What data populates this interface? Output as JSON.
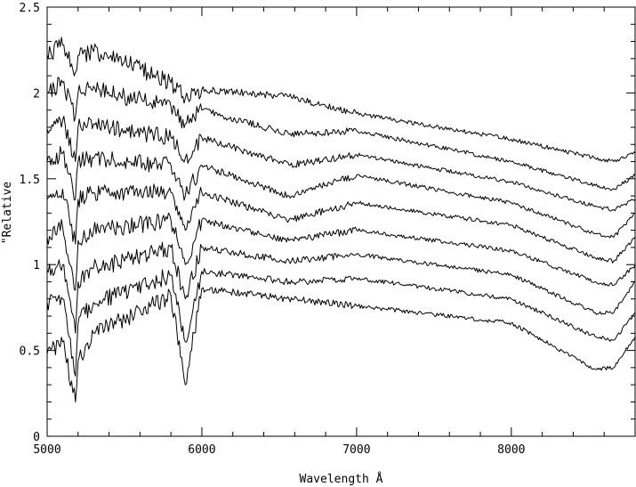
{
  "chart_data": {
    "type": "line",
    "title": "",
    "xlabel": "Wavelength Å",
    "ylabel": "\"Relative",
    "xlim": [
      5000,
      8800
    ],
    "ylim": [
      0,
      2.5
    ],
    "x_ticks": [
      5000,
      6000,
      7000,
      8000
    ],
    "x_tick_labels": [
      "5000",
      "6000",
      "7000",
      "8000"
    ],
    "y_ticks": [
      0,
      0.5,
      1,
      1.5,
      2,
      2.5
    ],
    "y_tick_labels": [
      "0",
      "0.5",
      "1",
      "1.5",
      "2",
      "2.5"
    ],
    "grid": false,
    "legend": "none",
    "line_color": "#000000",
    "series": [
      {
        "x": [
          5000,
          5100,
          5183,
          5200,
          5300,
          5500,
          5800,
          5893,
          6000,
          6563,
          7000,
          8000,
          8542,
          8662,
          8800
        ],
        "y": [
          2.22,
          2.28,
          2.12,
          2.22,
          2.24,
          2.18,
          2.06,
          1.97,
          2.02,
          1.98,
          1.88,
          1.73,
          1.62,
          1.6,
          1.65
        ]
      },
      {
        "x": [
          5000,
          5100,
          5183,
          5200,
          5300,
          5500,
          5800,
          5893,
          6000,
          6563,
          7000,
          8000,
          8542,
          8662,
          8800
        ],
        "y": [
          2.0,
          2.06,
          1.86,
          2.0,
          2.04,
          1.98,
          1.92,
          1.82,
          1.9,
          1.76,
          1.78,
          1.6,
          1.46,
          1.44,
          1.52
        ]
      },
      {
        "x": [
          5000,
          5100,
          5183,
          5200,
          5300,
          5500,
          5800,
          5893,
          6000,
          6563,
          7000,
          8000,
          8542,
          8662,
          8800
        ],
        "y": [
          1.79,
          1.84,
          1.6,
          1.8,
          1.82,
          1.78,
          1.74,
          1.62,
          1.74,
          1.58,
          1.64,
          1.48,
          1.34,
          1.32,
          1.38
        ]
      },
      {
        "x": [
          5000,
          5100,
          5183,
          5200,
          5300,
          5500,
          5800,
          5893,
          6000,
          6563,
          7000,
          8000,
          8542,
          8662,
          8800
        ],
        "y": [
          1.6,
          1.65,
          1.38,
          1.6,
          1.62,
          1.6,
          1.58,
          1.4,
          1.58,
          1.4,
          1.52,
          1.36,
          1.18,
          1.16,
          1.3
        ]
      },
      {
        "x": [
          5000,
          5100,
          5183,
          5200,
          5300,
          5500,
          5800,
          5893,
          6000,
          6563,
          7000,
          8000,
          8542,
          8662,
          8800
        ],
        "y": [
          1.38,
          1.44,
          1.12,
          1.38,
          1.42,
          1.42,
          1.42,
          1.2,
          1.42,
          1.26,
          1.36,
          1.23,
          1.04,
          1.02,
          1.16
        ]
      },
      {
        "x": [
          5000,
          5100,
          5183,
          5200,
          5300,
          5500,
          5800,
          5893,
          6000,
          6563,
          7000,
          8000,
          8542,
          8662,
          8800
        ],
        "y": [
          1.16,
          1.22,
          0.85,
          1.14,
          1.2,
          1.22,
          1.26,
          1.0,
          1.26,
          1.14,
          1.2,
          1.08,
          0.9,
          0.88,
          1.0
        ]
      },
      {
        "x": [
          5000,
          5100,
          5183,
          5200,
          5300,
          5500,
          5800,
          5893,
          6000,
          6563,
          7000,
          8000,
          8542,
          8662,
          8800
        ],
        "y": [
          0.97,
          1.0,
          0.6,
          0.9,
          0.98,
          1.02,
          1.1,
          0.8,
          1.1,
          1.02,
          1.06,
          0.94,
          0.72,
          0.72,
          0.9
        ]
      },
      {
        "x": [
          5000,
          5100,
          5183,
          5200,
          5300,
          5500,
          5800,
          5893,
          6000,
          6563,
          7000,
          8000,
          8542,
          8662,
          8800
        ],
        "y": [
          0.78,
          0.8,
          0.35,
          0.66,
          0.78,
          0.84,
          0.94,
          0.55,
          0.96,
          0.9,
          0.92,
          0.8,
          0.58,
          0.56,
          0.72
        ]
      },
      {
        "x": [
          5000,
          5100,
          5183,
          5200,
          5300,
          5500,
          5800,
          5893,
          6000,
          6563,
          7000,
          8000,
          8542,
          8662,
          8800
        ],
        "y": [
          0.48,
          0.55,
          0.2,
          0.44,
          0.6,
          0.68,
          0.82,
          0.3,
          0.86,
          0.8,
          0.76,
          0.66,
          0.39,
          0.4,
          0.58
        ]
      }
    ]
  }
}
